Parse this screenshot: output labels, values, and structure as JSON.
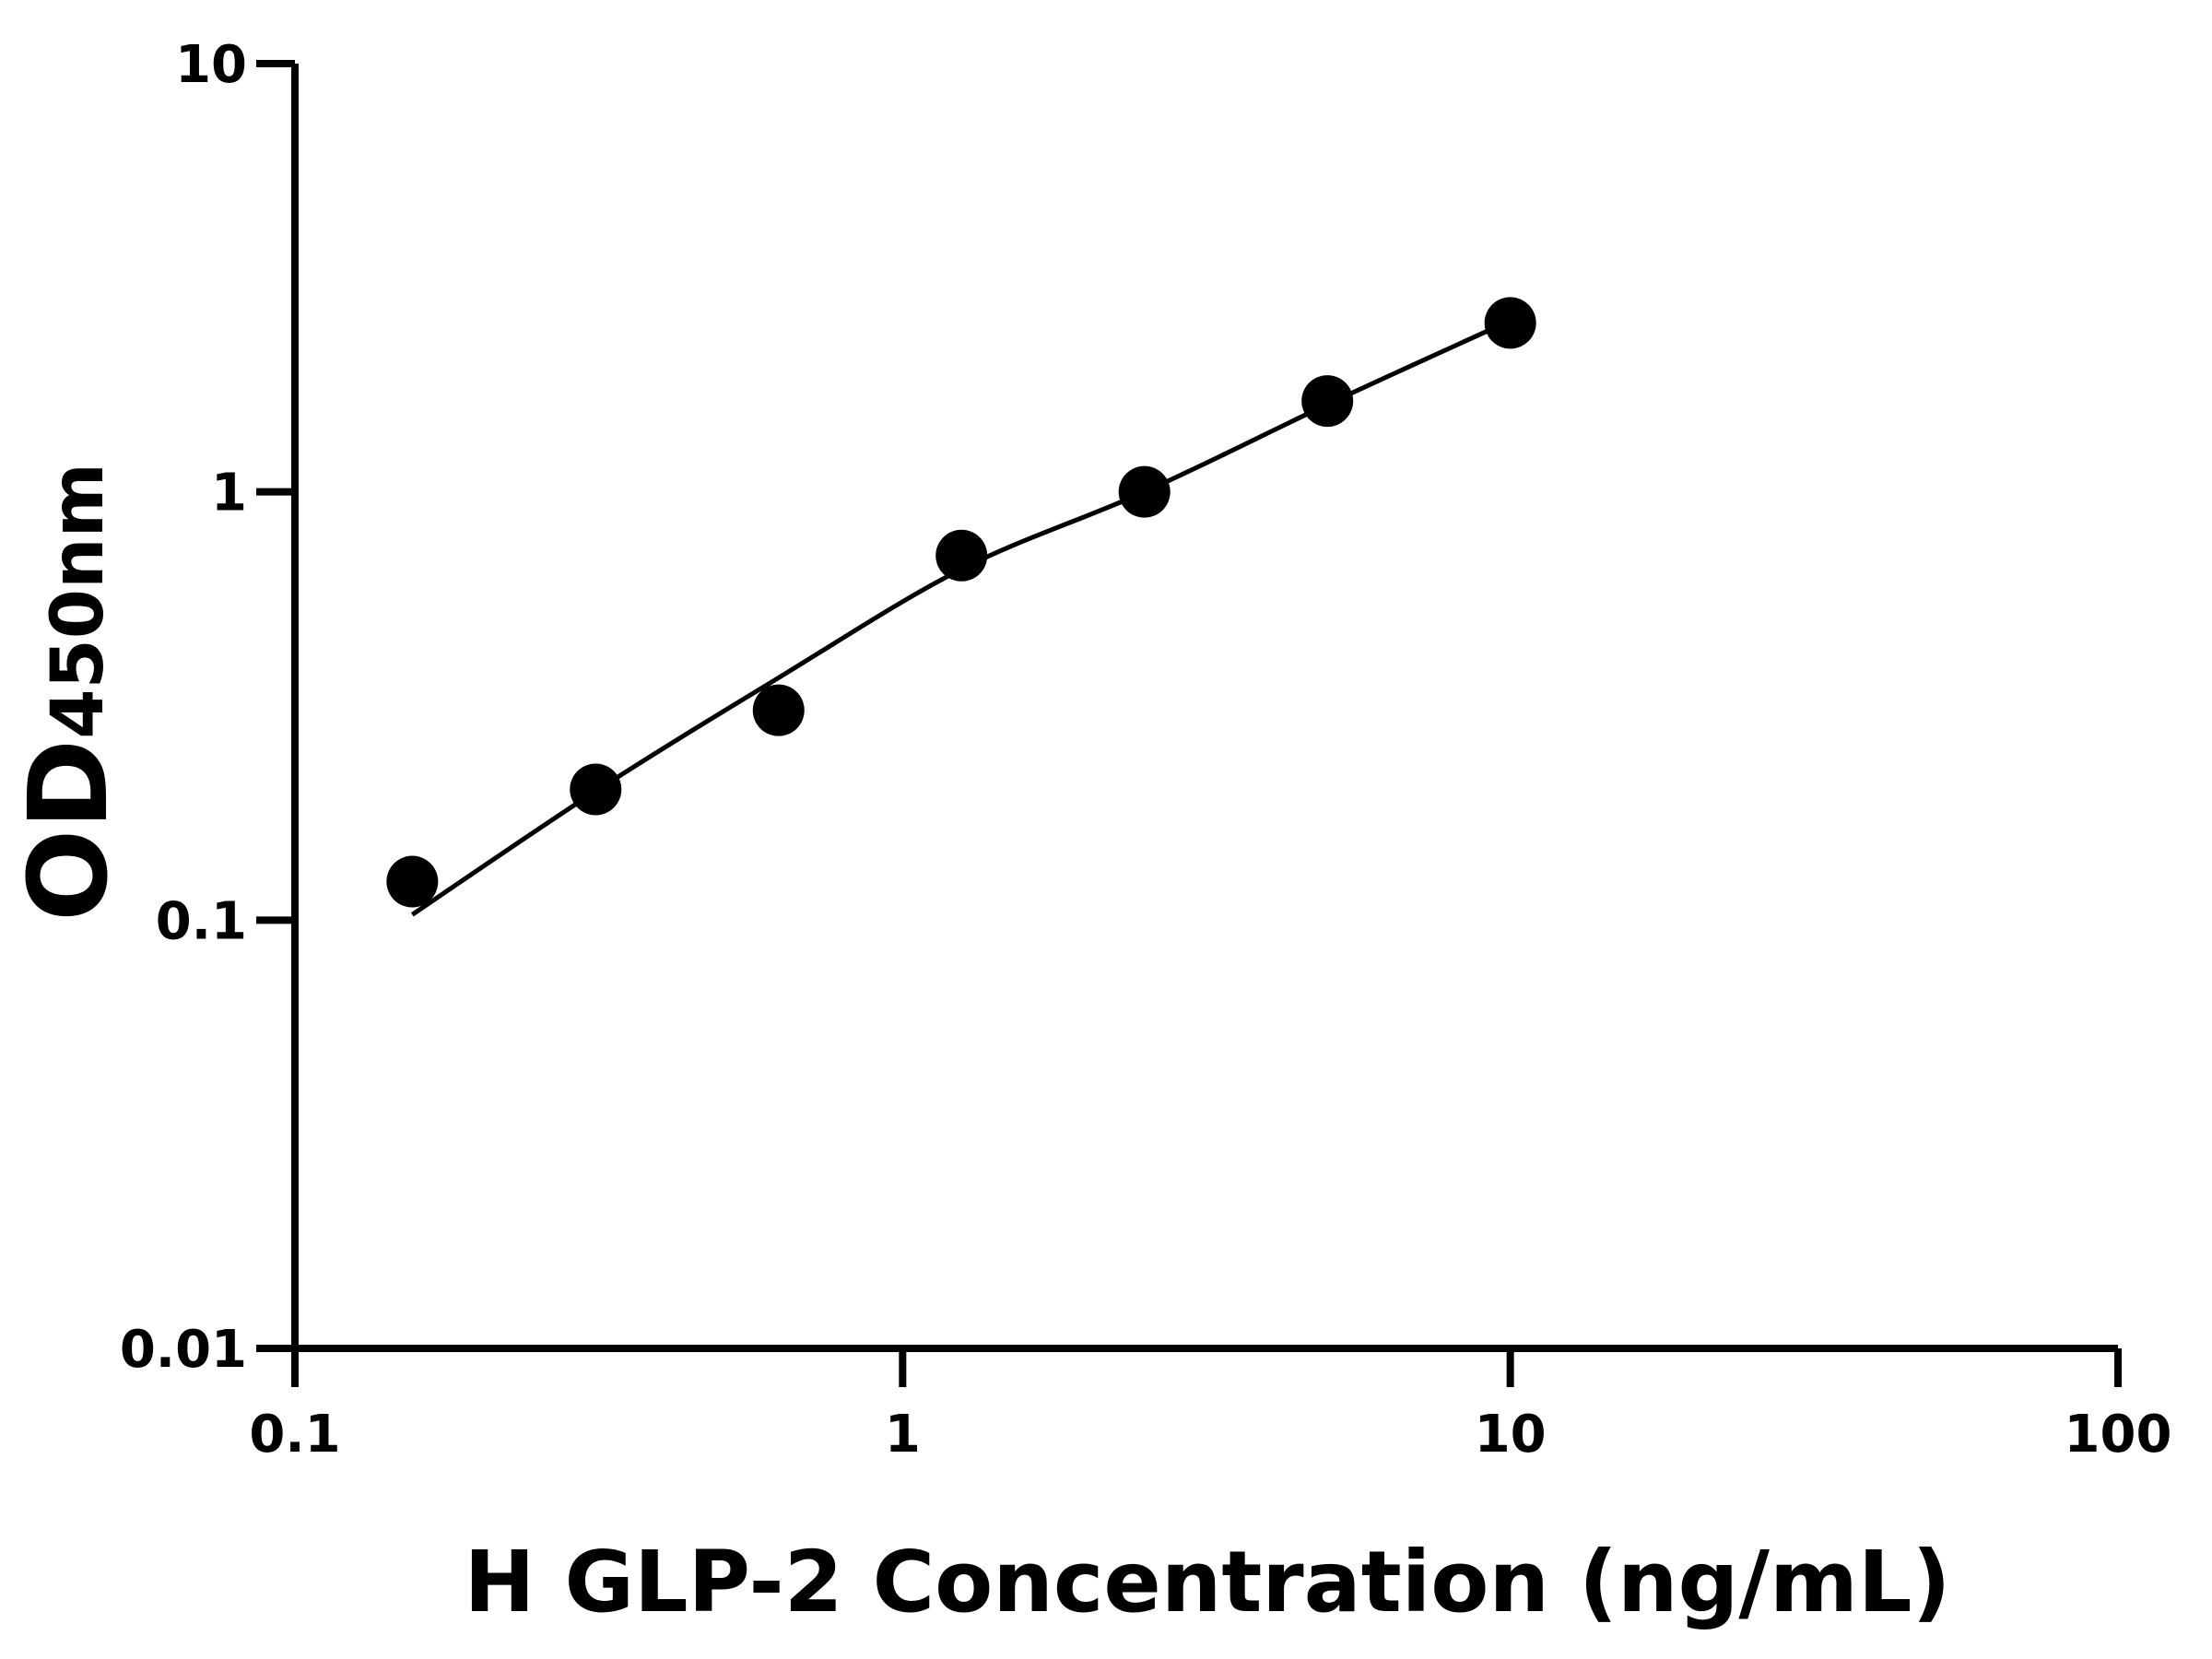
{
  "chart_data": {
    "type": "scatter",
    "title": "",
    "xlabel": "H GLP-2 Concentration (ng/mL)",
    "ylabel_main": "OD",
    "ylabel_sub": "450nm",
    "x_scale": "log",
    "y_scale": "log",
    "xlim": [
      0.1,
      100
    ],
    "ylim": [
      0.01,
      10
    ],
    "x_ticks": [
      0.1,
      1,
      10,
      100
    ],
    "x_tick_labels": [
      "0.1",
      "1",
      "10",
      "100"
    ],
    "y_ticks": [
      0.01,
      0.1,
      1,
      10
    ],
    "y_tick_labels": [
      "0.01",
      "0.1",
      "1",
      "10"
    ],
    "grid": false,
    "points": [
      {
        "x": 0.156,
        "y": 0.123
      },
      {
        "x": 0.3125,
        "y": 0.202
      },
      {
        "x": 0.625,
        "y": 0.309
      },
      {
        "x": 1.25,
        "y": 0.71
      },
      {
        "x": 2.5,
        "y": 1.0
      },
      {
        "x": 5,
        "y": 1.63
      },
      {
        "x": 10,
        "y": 2.48
      }
    ],
    "fit_curve": [
      {
        "x": 0.156,
        "y": 0.103
      },
      {
        "x": 0.3125,
        "y": 0.2
      },
      {
        "x": 0.625,
        "y": 0.368
      },
      {
        "x": 1.25,
        "y": 0.66
      },
      {
        "x": 2.5,
        "y": 1.0
      },
      {
        "x": 5,
        "y": 1.6
      },
      {
        "x": 9.2,
        "y": 2.38
      }
    ],
    "colors": {
      "points": "#000000",
      "curve": "#000000",
      "axes": "#000000"
    }
  }
}
